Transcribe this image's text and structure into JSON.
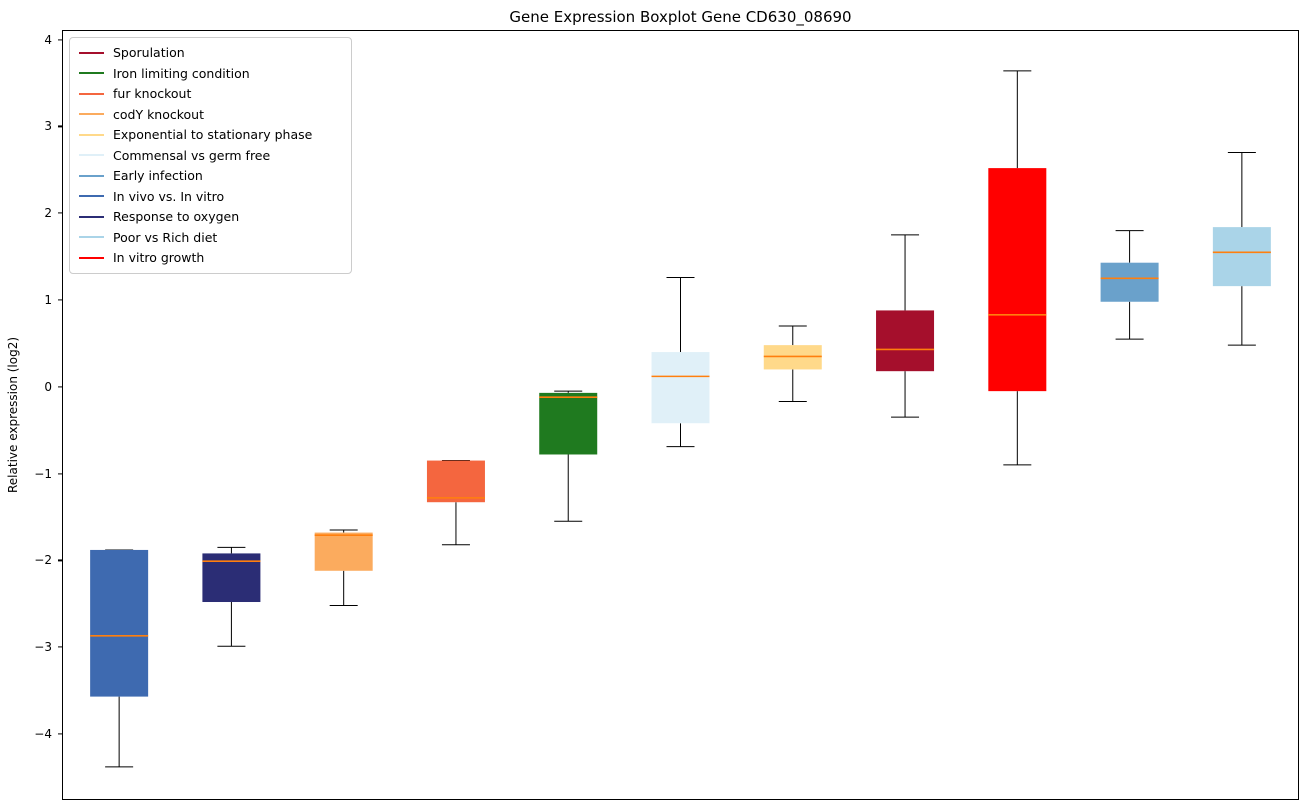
{
  "chart_data": {
    "type": "boxplot",
    "title": "Gene Expression Boxplot Gene CD630_08690",
    "xlabel": "",
    "ylabel": "Relative expression (log2)",
    "ylim": [
      -4.75,
      4.1
    ],
    "yticks": [
      -4,
      -3,
      -2,
      -1,
      0,
      1,
      2,
      3,
      4
    ],
    "grid": false,
    "legend_position": "upper-left",
    "median_color": "#ff7f0e",
    "whisker_color": "#000000",
    "legend": [
      {
        "label": "Sporulation",
        "color": "#a50f2c"
      },
      {
        "label": "Iron limiting condition",
        "color": "#1f7a1f"
      },
      {
        "label": "fur knockout",
        "color": "#f4663f"
      },
      {
        "label": "codY knockout",
        "color": "#fbab5e"
      },
      {
        "label": "Exponential to stationary phase",
        "color": "#ffd98a"
      },
      {
        "label": "Commensal vs germ free",
        "color": "#e0f0f8"
      },
      {
        "label": "Early infection",
        "color": "#6aa1cb"
      },
      {
        "label": "In vivo vs. In vitro",
        "color": "#3e6ab0"
      },
      {
        "label": "Response to oxygen",
        "color": "#2b2d75"
      },
      {
        "label": "Poor vs Rich diet",
        "color": "#aad4e8"
      },
      {
        "label": "In vitro growth",
        "color": "#ff0000"
      }
    ],
    "boxes": [
      {
        "label": "In vivo vs. In vitro",
        "color": "#3e6ab0",
        "whisker_low": -4.38,
        "q1": -3.57,
        "median": -2.87,
        "q3": -1.88,
        "whisker_high": -1.88
      },
      {
        "label": "Response to oxygen",
        "color": "#2b2d75",
        "whisker_low": -2.99,
        "q1": -2.48,
        "median": -2.01,
        "q3": -1.92,
        "whisker_high": -1.85
      },
      {
        "label": "codY knockout",
        "color": "#fbab5e",
        "whisker_low": -2.52,
        "q1": -2.12,
        "median": -1.71,
        "q3": -1.68,
        "whisker_high": -1.65
      },
      {
        "label": "fur knockout",
        "color": "#f4663f",
        "whisker_low": -1.82,
        "q1": -1.33,
        "median": -1.28,
        "q3": -0.85,
        "whisker_high": -0.85
      },
      {
        "label": "Iron limiting condition",
        "color": "#1f7a1f",
        "whisker_low": -1.55,
        "q1": -0.78,
        "median": -0.12,
        "q3": -0.07,
        "whisker_high": -0.05
      },
      {
        "label": "Commensal vs germ free",
        "color": "#e0f0f8",
        "whisker_low": -0.69,
        "q1": -0.42,
        "median": 0.12,
        "q3": 0.4,
        "whisker_high": 1.26
      },
      {
        "label": "Exponential to stationary phase",
        "color": "#ffd98a",
        "whisker_low": -0.17,
        "q1": 0.2,
        "median": 0.35,
        "q3": 0.48,
        "whisker_high": 0.7
      },
      {
        "label": "Sporulation",
        "color": "#a50f2c",
        "whisker_low": -0.35,
        "q1": 0.18,
        "median": 0.43,
        "q3": 0.88,
        "whisker_high": 1.75
      },
      {
        "label": "In vitro growth",
        "color": "#ff0000",
        "whisker_low": -0.9,
        "q1": -0.05,
        "median": 0.83,
        "q3": 2.52,
        "whisker_high": 3.64
      },
      {
        "label": "Early infection",
        "color": "#6aa1cb",
        "whisker_low": 0.55,
        "q1": 0.98,
        "median": 1.25,
        "q3": 1.43,
        "whisker_high": 1.8
      },
      {
        "label": "Poor vs Rich diet",
        "color": "#aad4e8",
        "whisker_low": 0.48,
        "q1": 1.16,
        "median": 1.55,
        "q3": 1.84,
        "whisker_high": 2.7
      }
    ]
  }
}
